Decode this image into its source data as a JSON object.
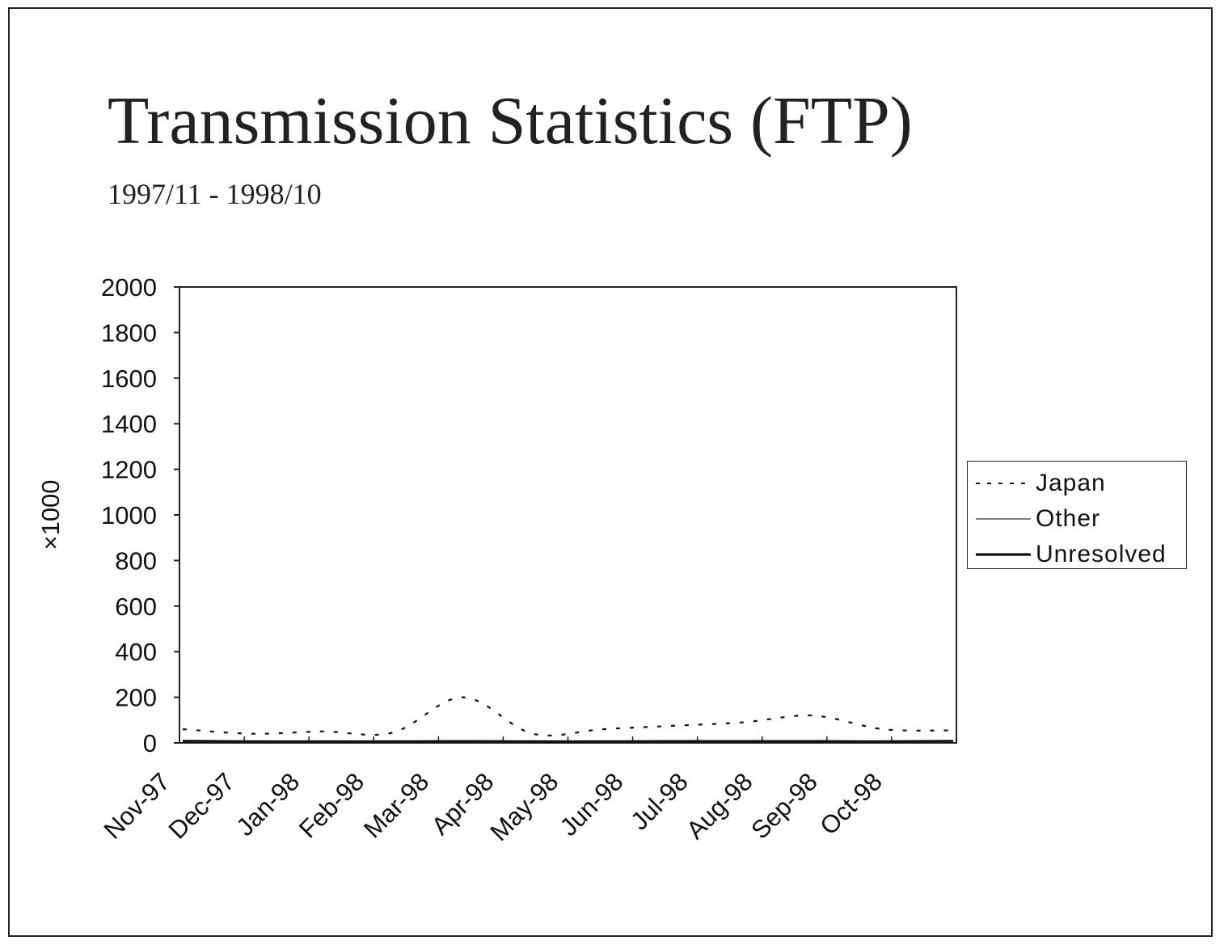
{
  "chart_data": {
    "type": "line",
    "title": "Transmission Statistics (FTP)",
    "subtitle": "1997/11 - 1998/10",
    "ylabel": "×1000",
    "xlabel": "",
    "ylim": [
      0,
      2000
    ],
    "yticks": [
      0,
      200,
      400,
      600,
      800,
      1000,
      1200,
      1400,
      1600,
      1800,
      2000
    ],
    "categories": [
      "Nov-97",
      "Dec-97",
      "Jan-98",
      "Feb-98",
      "Mar-98",
      "Apr-98",
      "May-98",
      "Jun-98",
      "Jul-98",
      "Aug-98",
      "Sep-98",
      "Oct-98"
    ],
    "series": [
      {
        "name": "Japan",
        "style": "dotted",
        "values": [
          60,
          40,
          50,
          45,
          200,
          40,
          60,
          75,
          90,
          120,
          60,
          55
        ]
      },
      {
        "name": "Other",
        "style": "thin",
        "values": [
          5,
          4,
          4,
          4,
          5,
          4,
          4,
          5,
          5,
          5,
          4,
          5
        ]
      },
      {
        "name": "Unresolved",
        "style": "thick",
        "values": [
          8,
          6,
          6,
          6,
          7,
          6,
          6,
          7,
          7,
          7,
          6,
          8
        ]
      }
    ],
    "legend_position": "right",
    "grid": false
  }
}
